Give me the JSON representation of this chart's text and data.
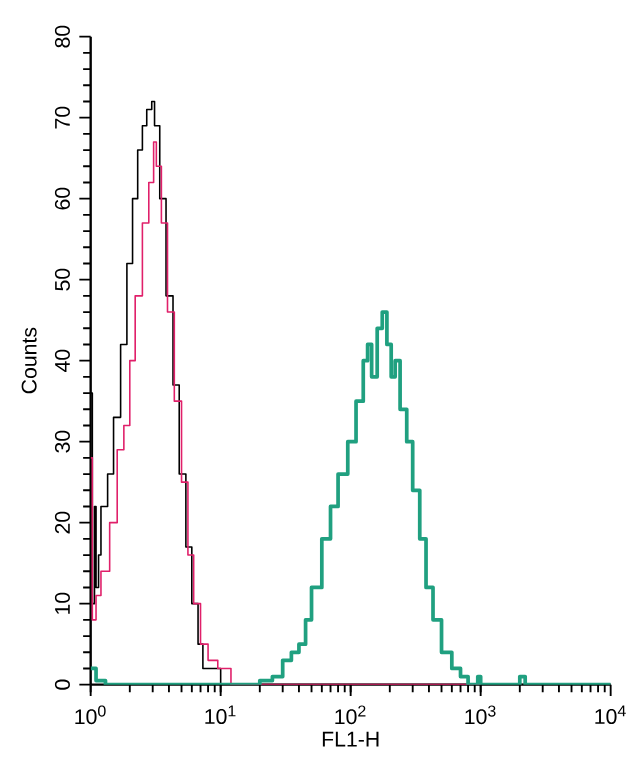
{
  "chart_data": {
    "type": "step",
    "xlabel": "FL1-H",
    "ylabel": "Counts",
    "log": "x",
    "grid": false,
    "marker": "none",
    "line_style": "solid",
    "xlim": [
      1,
      10000
    ],
    "xticks": [
      {
        "value": 1,
        "label": "10$^{0}$"
      },
      {
        "value": 10,
        "label": "10$^{1}$"
      },
      {
        "value": 100,
        "label": "10$^{2}$"
      },
      {
        "value": 1000,
        "label": "10$^{3}$"
      },
      {
        "value": 10000,
        "label": "10$^{4}$"
      }
    ],
    "ylim": [
      0,
      80
    ],
    "yticks": [
      0,
      10,
      20,
      30,
      40,
      50,
      60,
      70,
      80
    ],
    "series": [
      {
        "color": "#000000",
        "x": [
          1,
          1.03,
          1.07,
          1.1,
          1.15,
          1.2,
          1.35,
          1.5,
          1.7,
          1.9,
          2.1,
          2.3,
          2.5,
          2.7,
          2.95,
          3.1,
          3.4,
          3.8,
          4.3,
          4.8,
          5.4,
          6.0,
          6.7,
          7.3,
          8.5,
          10,
          20,
          10000
        ],
        "values": [
          36,
          10,
          22,
          12,
          16,
          22,
          26,
          33,
          42,
          52,
          60,
          66,
          69,
          71,
          72,
          69,
          60,
          48,
          37,
          26,
          17,
          10,
          5,
          2,
          2,
          0,
          0,
          0
        ]
      },
      {
        "color": "#e0206a",
        "x": [
          1,
          1.03,
          1.1,
          1.2,
          1.4,
          1.6,
          1.8,
          2.0,
          2.2,
          2.5,
          2.8,
          3.05,
          3.2,
          3.5,
          3.9,
          4.4,
          5.0,
          5.6,
          6.2,
          7,
          8,
          9.5,
          12,
          20,
          1000
        ],
        "values": [
          28,
          8,
          11,
          14,
          20,
          29,
          32,
          40,
          48,
          57,
          62,
          67,
          64,
          57,
          46,
          35,
          25,
          16,
          10,
          5,
          3,
          2,
          0,
          0,
          0
        ]
      },
      {
        "color": "#20a080",
        "x": [
          1,
          1.1,
          1.3,
          15,
          20,
          25,
          30,
          35,
          40,
          45,
          50,
          60,
          70,
          80,
          95,
          110,
          125,
          135,
          145,
          160,
          175,
          190,
          205,
          220,
          240,
          270,
          300,
          340,
          380,
          430,
          500,
          600,
          700,
          800,
          950,
          1000,
          1800,
          2000,
          2200,
          10000
        ],
        "values": [
          2,
          0.5,
          0,
          0,
          0.5,
          1,
          3,
          4,
          5,
          8,
          12,
          18,
          22,
          26,
          30,
          35,
          40,
          42,
          38,
          44,
          46,
          42,
          38,
          40,
          34,
          30,
          24,
          18,
          12,
          8,
          4,
          2,
          1,
          0,
          1,
          0,
          0,
          1,
          0,
          0
        ]
      }
    ]
  }
}
